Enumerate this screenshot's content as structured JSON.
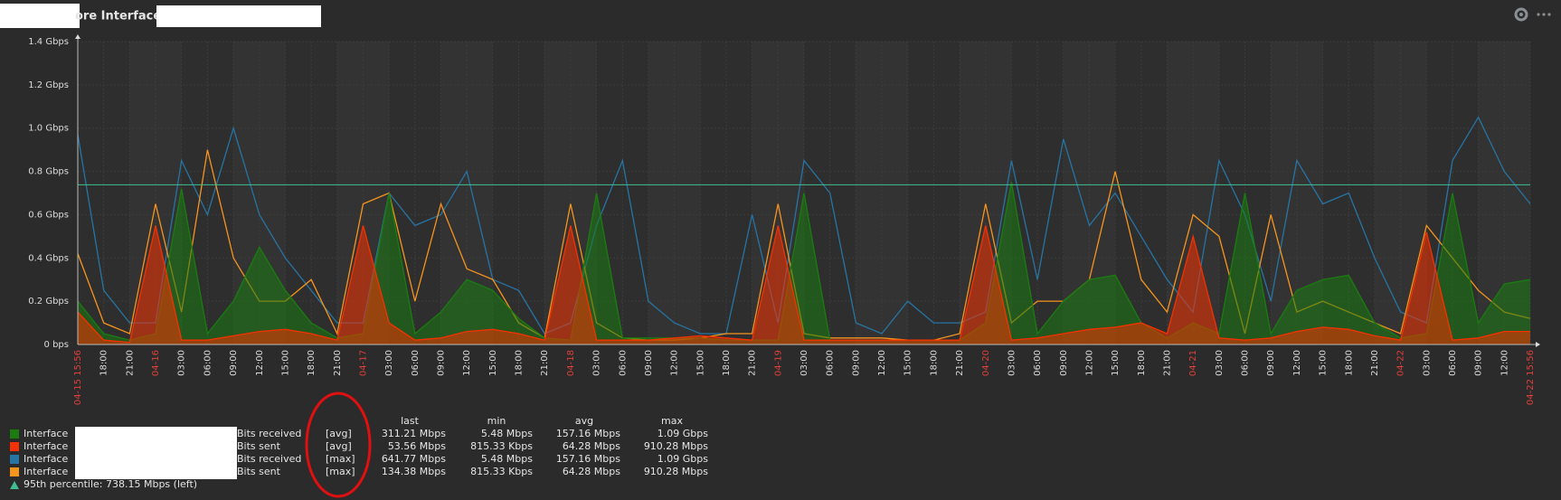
{
  "chart_data": {
    "type": "line",
    "title": "ore Interface",
    "ylim": [
      0,
      1.4
    ],
    "yticks": [
      {
        "value": 0,
        "label": "0 bps"
      },
      {
        "value": 0.2,
        "label": "0.2 Gbps"
      },
      {
        "value": 0.4,
        "label": "0.4 Gbps"
      },
      {
        "value": 0.6,
        "label": "0.6 Gbps"
      },
      {
        "value": 0.8,
        "label": "0.8 Gbps"
      },
      {
        "value": 1.0,
        "label": "1.0 Gbps"
      },
      {
        "value": 1.2,
        "label": "1.2 Gbps"
      },
      {
        "value": 1.4,
        "label": "1.4 Gbps"
      }
    ],
    "categories": [
      "04-15 15:56",
      "18:00",
      "21:00",
      "04-16",
      "03:00",
      "06:00",
      "09:00",
      "12:00",
      "15:00",
      "18:00",
      "21:00",
      "04-17",
      "03:00",
      "06:00",
      "09:00",
      "12:00",
      "15:00",
      "18:00",
      "21:00",
      "04-18",
      "03:00",
      "06:00",
      "09:00",
      "12:00",
      "15:00",
      "18:00",
      "21:00",
      "04-19",
      "03:00",
      "06:00",
      "09:00",
      "12:00",
      "15:00",
      "18:00",
      "21:00",
      "04-20",
      "03:00",
      "06:00",
      "09:00",
      "12:00",
      "15:00",
      "18:00",
      "21:00",
      "04-21",
      "03:00",
      "06:00",
      "09:00",
      "12:00",
      "15:00",
      "18:00",
      "21:00",
      "04-22",
      "03:00",
      "06:00",
      "09:00",
      "12:00",
      "04-22 15:56"
    ],
    "columns": [
      "last",
      "min",
      "avg",
      "max"
    ],
    "series": [
      {
        "name": "Interface",
        "item": "Bits received",
        "function": "[max]",
        "color": "#2774a4",
        "draw": "line",
        "last": "641.77 Mbps",
        "min": "5.48 Mbps",
        "avg": "157.16 Mbps",
        "max": "1.09 Gbps",
        "values": [
          0.97,
          0.25,
          0.1,
          0.1,
          0.85,
          0.6,
          1.0,
          0.6,
          0.4,
          0.25,
          0.1,
          0.1,
          0.7,
          0.55,
          0.6,
          0.8,
          0.3,
          0.25,
          0.05,
          0.1,
          0.55,
          0.85,
          0.2,
          0.1,
          0.05,
          0.05,
          0.6,
          0.1,
          0.85,
          0.7,
          0.1,
          0.05,
          0.2,
          0.1,
          0.1,
          0.15,
          0.85,
          0.3,
          0.95,
          0.55,
          0.7,
          0.5,
          0.3,
          0.15,
          0.85,
          0.6,
          0.2,
          0.85,
          0.65,
          0.7,
          0.4,
          0.15,
          0.1,
          0.85,
          1.05,
          0.8,
          0.65
        ]
      },
      {
        "name": "Interface",
        "item": "Bits sent",
        "function": "[max]",
        "color": "#f7941d",
        "draw": "line",
        "last": "134.38 Mbps",
        "min": "815.33 Kbps",
        "avg": "64.28 Mbps",
        "max": "910.28 Mbps",
        "values": [
          0.42,
          0.1,
          0.05,
          0.65,
          0.15,
          0.9,
          0.4,
          0.2,
          0.2,
          0.3,
          0.05,
          0.65,
          0.7,
          0.2,
          0.65,
          0.35,
          0.3,
          0.1,
          0.03,
          0.65,
          0.1,
          0.03,
          0.02,
          0.02,
          0.03,
          0.05,
          0.05,
          0.65,
          0.05,
          0.03,
          0.03,
          0.03,
          0.02,
          0.02,
          0.05,
          0.65,
          0.1,
          0.2,
          0.2,
          0.3,
          0.8,
          0.3,
          0.15,
          0.6,
          0.5,
          0.05,
          0.6,
          0.15,
          0.2,
          0.15,
          0.1,
          0.05,
          0.55,
          0.4,
          0.25,
          0.15,
          0.12
        ]
      },
      {
        "name": "Interface",
        "item": "Bits received",
        "function": "[avg]",
        "color": "#1a7c11",
        "draw": "filled",
        "last": "311.21 Mbps",
        "min": "5.48 Mbps",
        "avg": "157.16 Mbps",
        "max": "1.09 Gbps",
        "values": [
          0.2,
          0.05,
          0.02,
          0.05,
          0.72,
          0.05,
          0.2,
          0.45,
          0.25,
          0.1,
          0.03,
          0.05,
          0.7,
          0.05,
          0.15,
          0.3,
          0.25,
          0.12,
          0.03,
          0.02,
          0.7,
          0.03,
          0.03,
          0.03,
          0.03,
          0.02,
          0.02,
          0.02,
          0.7,
          0.02,
          0.02,
          0.02,
          0.02,
          0.02,
          0.02,
          0.1,
          0.75,
          0.05,
          0.2,
          0.3,
          0.32,
          0.1,
          0.03,
          0.1,
          0.05,
          0.7,
          0.05,
          0.25,
          0.3,
          0.32,
          0.1,
          0.03,
          0.05,
          0.7,
          0.1,
          0.28,
          0.3
        ]
      },
      {
        "name": "Interface",
        "item": "Bits sent",
        "function": "[avg]",
        "color": "#f63100",
        "draw": "filled",
        "last": "53.56 Mbps",
        "min": "815.33 Kbps",
        "avg": "64.28 Mbps",
        "max": "910.28 Mbps",
        "values": [
          0.15,
          0.02,
          0.01,
          0.55,
          0.02,
          0.02,
          0.04,
          0.06,
          0.07,
          0.05,
          0.02,
          0.55,
          0.1,
          0.02,
          0.03,
          0.06,
          0.07,
          0.05,
          0.02,
          0.55,
          0.02,
          0.02,
          0.02,
          0.03,
          0.04,
          0.03,
          0.02,
          0.55,
          0.02,
          0.02,
          0.02,
          0.02,
          0.02,
          0.02,
          0.02,
          0.55,
          0.02,
          0.03,
          0.05,
          0.07,
          0.08,
          0.1,
          0.05,
          0.5,
          0.03,
          0.02,
          0.03,
          0.06,
          0.08,
          0.07,
          0.04,
          0.02,
          0.52,
          0.02,
          0.03,
          0.06,
          0.06
        ]
      }
    ],
    "legend_order": [
      2,
      3,
      0,
      1
    ],
    "percentile": {
      "value": 0.73815,
      "label": "95th percentile: 738.15 Mbps (left)",
      "color": "#3fbf8f"
    },
    "date_color": "#e0403a"
  }
}
